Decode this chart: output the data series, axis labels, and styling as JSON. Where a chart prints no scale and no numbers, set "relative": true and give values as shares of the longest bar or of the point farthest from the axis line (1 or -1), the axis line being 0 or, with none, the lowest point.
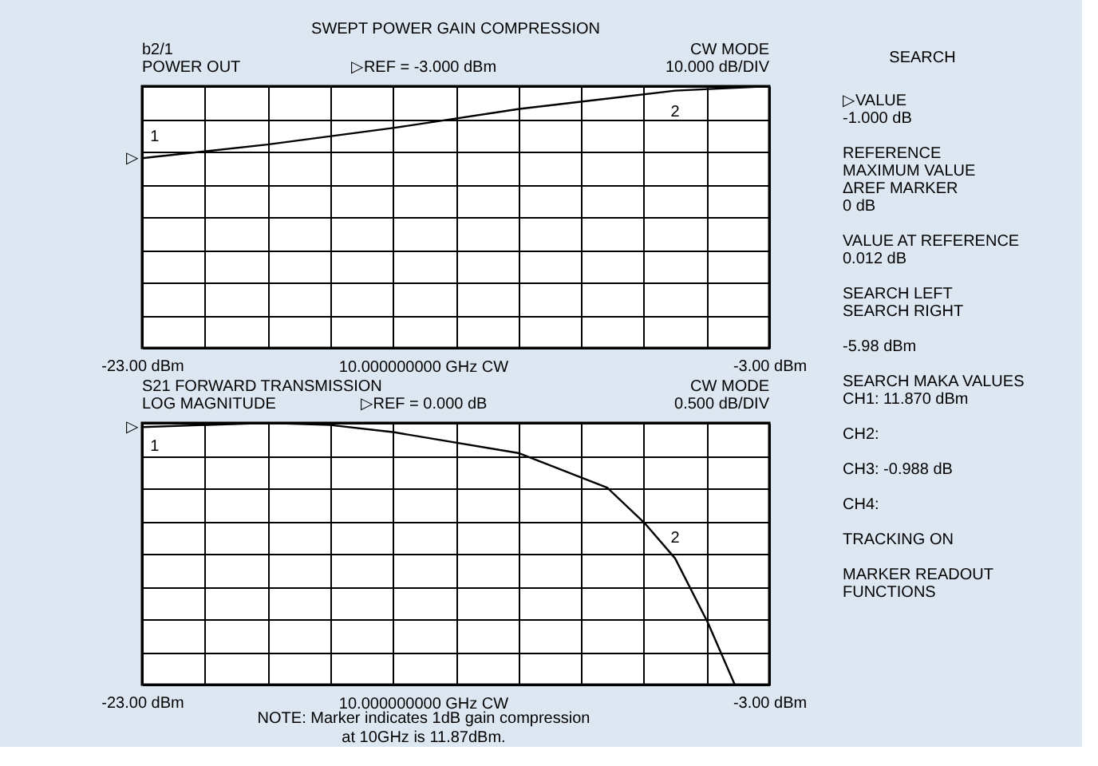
{
  "chart_data": [
    {
      "type": "line",
      "title": "SWEPT POWER GAIN COMPRESSION",
      "subtitle": [
        "b2/1",
        "POWER OUT"
      ],
      "xlabel": "10.000000000 GHz CW",
      "relative": true,
      "grid": true,
      "marker": "none",
      "line_style": "solid",
      "tick_labels": "x",
      "x": [
        -23,
        -19,
        -14.95,
        -10.97,
        -6,
        -3
      ],
      "series": [
        {
          "color": "#000000",
          "values": [
            0.725,
            0.777,
            0.841,
            0.913,
            0.983,
            1
          ]
        }
      ],
      "xlim": [
        -23,
        -3
      ],
      "xticks": [
        {
          "value": -23,
          "label": "-23.00 dBm"
        },
        {
          "value": -21,
          "label": null
        },
        {
          "value": -19,
          "label": null
        },
        {
          "value": -17,
          "label": null
        },
        {
          "value": -15,
          "label": null
        },
        {
          "value": -13,
          "label": null
        },
        {
          "value": -11,
          "label": null
        },
        {
          "value": -9,
          "label": null
        },
        {
          "value": -7,
          "label": null
        },
        {
          "value": -5,
          "label": null
        },
        {
          "value": -3,
          "label": "-3.00 dBm"
        }
      ],
      "annotations": [
        "▷REF = -3.000 dBm",
        "CW MODE",
        "10.000 dB/DIV",
        {
          "text": "▷",
          "x": -23,
          "y": 0.725
        },
        {
          "text": "1",
          "x": -22.6,
          "y": 0.73
        },
        {
          "text": "2",
          "x": -6,
          "y": 0.983
        }
      ]
    },
    {
      "type": "line",
      "subtitle": [
        "S21 FORWARD TRANSMISSION",
        "LOG MAGNITUDE"
      ],
      "xlabel": "10.000000000 GHz CW",
      "relative": true,
      "grid": true,
      "marker": "none",
      "line_style": "solid",
      "tick_labels": "x",
      "x": [
        -23,
        -19.02,
        -17,
        -14.95,
        -10.97,
        -8.17,
        -6.98,
        -6,
        -4.95,
        -4.1
      ],
      "series": [
        {
          "color": "#000000",
          "values": [
            0.984,
            1,
            0.992,
            0.964,
            0.884,
            0.753,
            0.618,
            0.482,
            0.235,
            0
          ]
        }
      ],
      "xlim": [
        -23,
        -3
      ],
      "xticks": [
        {
          "value": -23,
          "label": "-23.00 dBm"
        },
        {
          "value": -21,
          "label": null
        },
        {
          "value": -19,
          "label": null
        },
        {
          "value": -17,
          "label": null
        },
        {
          "value": -15,
          "label": null
        },
        {
          "value": -13,
          "label": null
        },
        {
          "value": -11,
          "label": null
        },
        {
          "value": -9,
          "label": null
        },
        {
          "value": -7,
          "label": null
        },
        {
          "value": -5,
          "label": null
        },
        {
          "value": -3,
          "label": "-3.00 dBm"
        }
      ],
      "annotations": [
        "▷REF = 0.000 dB",
        "CW MODE",
        "0.500 dB/DIV",
        "NOTE: Marker indicates 1dB gain compression\nat 10GHz is 11.87dBm.",
        {
          "text": "▷",
          "x": -23,
          "y": 0.984
        },
        {
          "text": "1",
          "x": -22.6,
          "y": 0.99
        },
        {
          "text": "2",
          "x": -6,
          "y": 0.482
        }
      ]
    },
    {
      "type": "other",
      "title": "SEARCH",
      "annotations": [
        "▷VALUE\n    -1.000 dB",
        "REFERENCE\n    MAXIMUM VALUE\n ΔREF MARKER\n0 dB",
        "VALUE AT REFERENCE\n    0.012 dB",
        "SEARCH LEFT\nSEARCH RIGHT",
        "-5.98 dBm",
        "SEARCH MAKA VALUES\nCH1:        11.870 dBm",
        "CH2:",
        "CH3:        -0.988 dB",
        "CH4:",
        "TRACKING              ON",
        "MARKER READOUT\nFUNCTIONS"
      ]
    }
  ]
}
